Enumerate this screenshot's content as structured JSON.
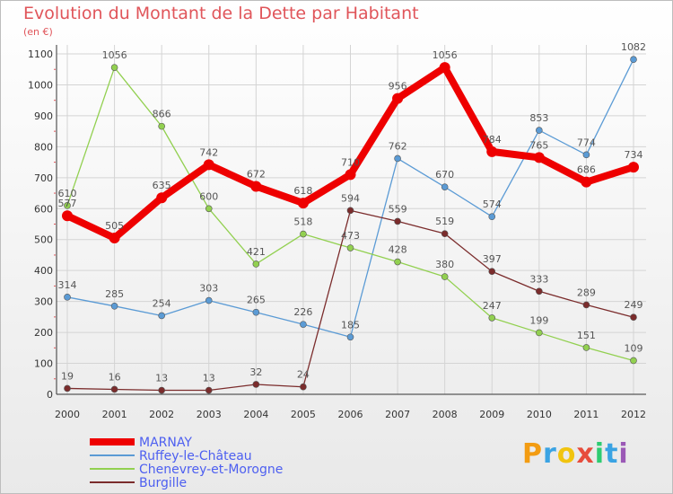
{
  "header": {
    "title": "Evolution du Montant de la Dette par Habitant",
    "subtitle": "(en €)"
  },
  "logo": {
    "text": "Proxiti"
  },
  "colors": {
    "title": "#e0555a",
    "axis_text": "#333333",
    "grid": "#d4d4d4"
  },
  "chart_data": {
    "type": "line",
    "title": "Evolution du Montant de la Dette par Habitant",
    "ylabel": "(en €)",
    "xlabel": "",
    "x": [
      "2000",
      "2001",
      "2002",
      "2003",
      "2004",
      "2005",
      "2006",
      "2007",
      "2008",
      "2009",
      "2010",
      "2011",
      "2012"
    ],
    "ylim": [
      0,
      1100
    ],
    "yticks": [
      0,
      100,
      200,
      300,
      400,
      500,
      600,
      700,
      800,
      900,
      1000,
      1100
    ],
    "grid": true,
    "legend": "bottom-left",
    "series": [
      {
        "name": "MARNAY",
        "color": "#ee0000",
        "values": [
          577,
          505,
          635,
          742,
          672,
          618,
          710,
          956,
          1056,
          784,
          765,
          686,
          734
        ]
      },
      {
        "name": "Ruffey-le-Château",
        "color": "#5b9bd5",
        "values": [
          314,
          285,
          254,
          303,
          265,
          226,
          185,
          762,
          670,
          574,
          853,
          774,
          1082
        ]
      },
      {
        "name": "Chenevrey-et-Morogne",
        "color": "#92d050",
        "values": [
          610,
          1056,
          866,
          600,
          421,
          518,
          473,
          428,
          380,
          247,
          199,
          151,
          109
        ]
      },
      {
        "name": "Burgille",
        "color": "#7b2c2c",
        "values": [
          19,
          16,
          13,
          13,
          32,
          24,
          594,
          559,
          519,
          397,
          333,
          289,
          249
        ]
      }
    ]
  }
}
